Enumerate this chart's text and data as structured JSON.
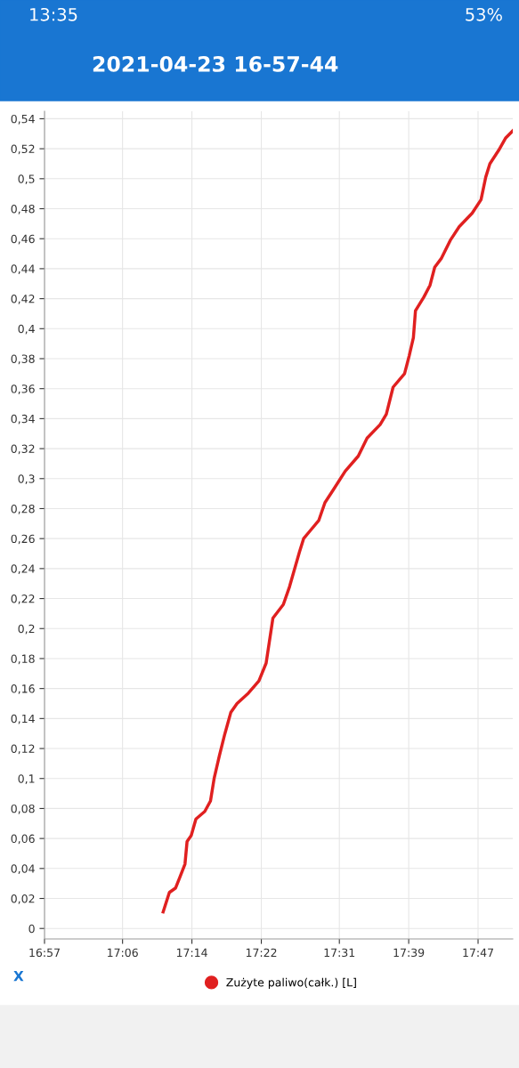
{
  "chart_data": {
    "type": "line",
    "title": "2021-04-23 16-57-44",
    "xlabel": "X",
    "annotations": [
      "13:35",
      "53%"
    ],
    "x": [
      17.178,
      17.19,
      17.202,
      17.21,
      17.22,
      17.224,
      17.232,
      17.241,
      17.258,
      17.269,
      17.276,
      17.286,
      17.296,
      17.308,
      17.32,
      17.342,
      17.362,
      17.376,
      17.389,
      17.409,
      17.421,
      17.44,
      17.448,
      17.46,
      17.477,
      17.489,
      17.506,
      17.528,
      17.553,
      17.57,
      17.595,
      17.607,
      17.62,
      17.642,
      17.651,
      17.659,
      17.663,
      17.679,
      17.691,
      17.7,
      17.713,
      17.73,
      17.747,
      17.772,
      17.789,
      17.798,
      17.806,
      17.823,
      17.836,
      17.85
    ],
    "series": [
      {
        "name": "Zużyte paliwo(całk.) [L]",
        "color": "#e02020",
        "values": [
          0.011,
          0.024,
          0.027,
          0.034,
          0.043,
          0.058,
          0.062,
          0.073,
          0.078,
          0.085,
          0.1,
          0.115,
          0.129,
          0.144,
          0.15,
          0.157,
          0.165,
          0.177,
          0.207,
          0.216,
          0.228,
          0.251,
          0.26,
          0.265,
          0.272,
          0.284,
          0.293,
          0.305,
          0.315,
          0.327,
          0.336,
          0.343,
          0.361,
          0.37,
          0.382,
          0.394,
          0.412,
          0.421,
          0.429,
          0.441,
          0.447,
          0.459,
          0.468,
          0.477,
          0.486,
          0.501,
          0.51,
          0.519,
          0.527,
          0.532
        ]
      }
    ],
    "xlim": [
      16.95,
      17.85
    ],
    "xticks": [
      {
        "value": 16.95,
        "label": "16:57"
      },
      {
        "value": 17.1,
        "label": "17:06"
      },
      {
        "value": 17.2333,
        "label": "17:14"
      },
      {
        "value": 17.3667,
        "label": "17:22"
      },
      {
        "value": 17.5167,
        "label": "17:31"
      },
      {
        "value": 17.65,
        "label": "17:39"
      },
      {
        "value": 17.7833,
        "label": "17:47"
      }
    ],
    "ylim": [
      -0.007,
      0.545
    ],
    "yticks": [
      {
        "value": 0,
        "label": "0"
      },
      {
        "value": 0.02,
        "label": "0,02"
      },
      {
        "value": 0.04,
        "label": "0,04"
      },
      {
        "value": 0.06,
        "label": "0,06"
      },
      {
        "value": 0.08,
        "label": "0,08"
      },
      {
        "value": 0.1,
        "label": "0,1"
      },
      {
        "value": 0.12,
        "label": "0,12"
      },
      {
        "value": 0.14,
        "label": "0,14"
      },
      {
        "value": 0.16,
        "label": "0,16"
      },
      {
        "value": 0.18,
        "label": "0,18"
      },
      {
        "value": 0.2,
        "label": "0,2"
      },
      {
        "value": 0.22,
        "label": "0,22"
      },
      {
        "value": 0.24,
        "label": "0,24"
      },
      {
        "value": 0.26,
        "label": "0,26"
      },
      {
        "value": 0.28,
        "label": "0,28"
      },
      {
        "value": 0.3,
        "label": "0,3"
      },
      {
        "value": 0.32,
        "label": "0,32"
      },
      {
        "value": 0.34,
        "label": "0,34"
      },
      {
        "value": 0.36,
        "label": "0,36"
      },
      {
        "value": 0.38,
        "label": "0,38"
      },
      {
        "value": 0.4,
        "label": "0,4"
      },
      {
        "value": 0.42,
        "label": "0,42"
      },
      {
        "value": 0.44,
        "label": "0,44"
      },
      {
        "value": 0.46,
        "label": "0,46"
      },
      {
        "value": 0.48,
        "label": "0,48"
      },
      {
        "value": 0.5,
        "label": "0,5"
      },
      {
        "value": 0.52,
        "label": "0,52"
      },
      {
        "value": 0.54,
        "label": "0,54"
      }
    ],
    "grid": true,
    "legend": "bottom",
    "marker": "none",
    "line_style": "solid"
  }
}
